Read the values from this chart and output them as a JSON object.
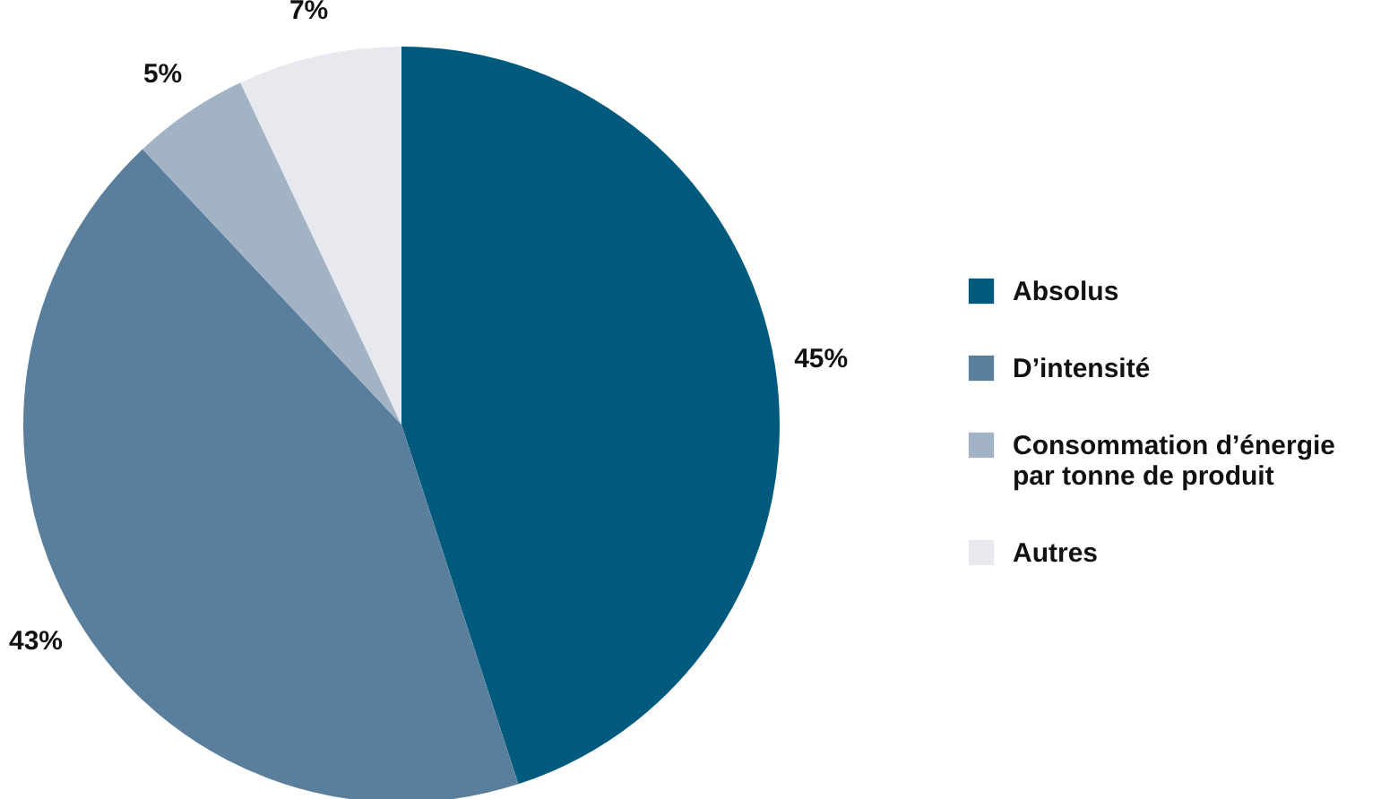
{
  "chart_data": {
    "type": "pie",
    "categories": [
      "Absolus",
      "D’intensité",
      "Consommation d’énergie par tonne de produit",
      "Autres"
    ],
    "values": [
      45,
      43,
      5,
      7
    ],
    "colors": [
      "#005a7e",
      "#5a7f9d",
      "#a3b3c6",
      "#e8e9ee"
    ],
    "value_labels": [
      "45%",
      "43%",
      "5%",
      "7%"
    ],
    "legend": "right"
  }
}
